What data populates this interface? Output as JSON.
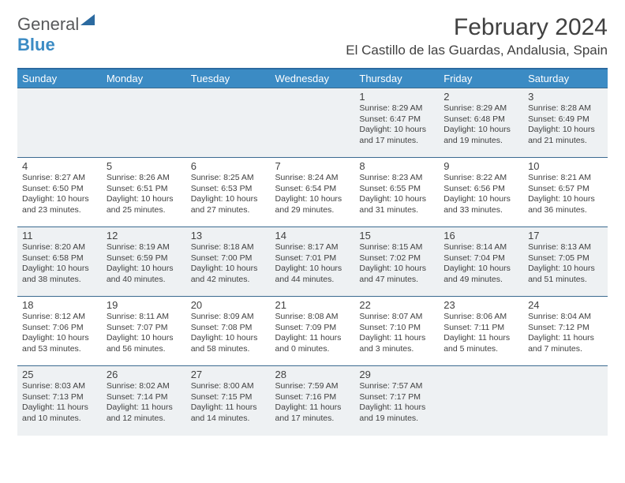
{
  "brand": {
    "part1": "General",
    "part2": "Blue"
  },
  "title": "February 2024",
  "location": "El Castillo de las Guardas, Andalusia, Spain",
  "colors": {
    "header_bg": "#3b8bc4",
    "header_border": "#2b6aa0",
    "row_border": "#3b6a90",
    "row_odd_bg": "#eef1f3",
    "row_even_bg": "#ffffff",
    "text": "#414141",
    "logo_gray": "#58595b",
    "logo_blue": "#3b8bc4"
  },
  "typography": {
    "title_size": 30,
    "location_size": 17,
    "dayhead_size": 13,
    "daynum_size": 13,
    "info_size": 10.5
  },
  "day_headers": [
    "Sunday",
    "Monday",
    "Tuesday",
    "Wednesday",
    "Thursday",
    "Friday",
    "Saturday"
  ],
  "weeks": [
    [
      null,
      null,
      null,
      null,
      {
        "n": 1,
        "sr": "8:29 AM",
        "ss": "6:47 PM",
        "dl": "10 hours and 17 minutes."
      },
      {
        "n": 2,
        "sr": "8:29 AM",
        "ss": "6:48 PM",
        "dl": "10 hours and 19 minutes."
      },
      {
        "n": 3,
        "sr": "8:28 AM",
        "ss": "6:49 PM",
        "dl": "10 hours and 21 minutes."
      }
    ],
    [
      {
        "n": 4,
        "sr": "8:27 AM",
        "ss": "6:50 PM",
        "dl": "10 hours and 23 minutes."
      },
      {
        "n": 5,
        "sr": "8:26 AM",
        "ss": "6:51 PM",
        "dl": "10 hours and 25 minutes."
      },
      {
        "n": 6,
        "sr": "8:25 AM",
        "ss": "6:53 PM",
        "dl": "10 hours and 27 minutes."
      },
      {
        "n": 7,
        "sr": "8:24 AM",
        "ss": "6:54 PM",
        "dl": "10 hours and 29 minutes."
      },
      {
        "n": 8,
        "sr": "8:23 AM",
        "ss": "6:55 PM",
        "dl": "10 hours and 31 minutes."
      },
      {
        "n": 9,
        "sr": "8:22 AM",
        "ss": "6:56 PM",
        "dl": "10 hours and 33 minutes."
      },
      {
        "n": 10,
        "sr": "8:21 AM",
        "ss": "6:57 PM",
        "dl": "10 hours and 36 minutes."
      }
    ],
    [
      {
        "n": 11,
        "sr": "8:20 AM",
        "ss": "6:58 PM",
        "dl": "10 hours and 38 minutes."
      },
      {
        "n": 12,
        "sr": "8:19 AM",
        "ss": "6:59 PM",
        "dl": "10 hours and 40 minutes."
      },
      {
        "n": 13,
        "sr": "8:18 AM",
        "ss": "7:00 PM",
        "dl": "10 hours and 42 minutes."
      },
      {
        "n": 14,
        "sr": "8:17 AM",
        "ss": "7:01 PM",
        "dl": "10 hours and 44 minutes."
      },
      {
        "n": 15,
        "sr": "8:15 AM",
        "ss": "7:02 PM",
        "dl": "10 hours and 47 minutes."
      },
      {
        "n": 16,
        "sr": "8:14 AM",
        "ss": "7:04 PM",
        "dl": "10 hours and 49 minutes."
      },
      {
        "n": 17,
        "sr": "8:13 AM",
        "ss": "7:05 PM",
        "dl": "10 hours and 51 minutes."
      }
    ],
    [
      {
        "n": 18,
        "sr": "8:12 AM",
        "ss": "7:06 PM",
        "dl": "10 hours and 53 minutes."
      },
      {
        "n": 19,
        "sr": "8:11 AM",
        "ss": "7:07 PM",
        "dl": "10 hours and 56 minutes."
      },
      {
        "n": 20,
        "sr": "8:09 AM",
        "ss": "7:08 PM",
        "dl": "10 hours and 58 minutes."
      },
      {
        "n": 21,
        "sr": "8:08 AM",
        "ss": "7:09 PM",
        "dl": "11 hours and 0 minutes."
      },
      {
        "n": 22,
        "sr": "8:07 AM",
        "ss": "7:10 PM",
        "dl": "11 hours and 3 minutes."
      },
      {
        "n": 23,
        "sr": "8:06 AM",
        "ss": "7:11 PM",
        "dl": "11 hours and 5 minutes."
      },
      {
        "n": 24,
        "sr": "8:04 AM",
        "ss": "7:12 PM",
        "dl": "11 hours and 7 minutes."
      }
    ],
    [
      {
        "n": 25,
        "sr": "8:03 AM",
        "ss": "7:13 PM",
        "dl": "11 hours and 10 minutes."
      },
      {
        "n": 26,
        "sr": "8:02 AM",
        "ss": "7:14 PM",
        "dl": "11 hours and 12 minutes."
      },
      {
        "n": 27,
        "sr": "8:00 AM",
        "ss": "7:15 PM",
        "dl": "11 hours and 14 minutes."
      },
      {
        "n": 28,
        "sr": "7:59 AM",
        "ss": "7:16 PM",
        "dl": "11 hours and 17 minutes."
      },
      {
        "n": 29,
        "sr": "7:57 AM",
        "ss": "7:17 PM",
        "dl": "11 hours and 19 minutes."
      },
      null,
      null
    ]
  ],
  "labels": {
    "sunrise": "Sunrise:",
    "sunset": "Sunset:",
    "daylight": "Daylight:"
  }
}
